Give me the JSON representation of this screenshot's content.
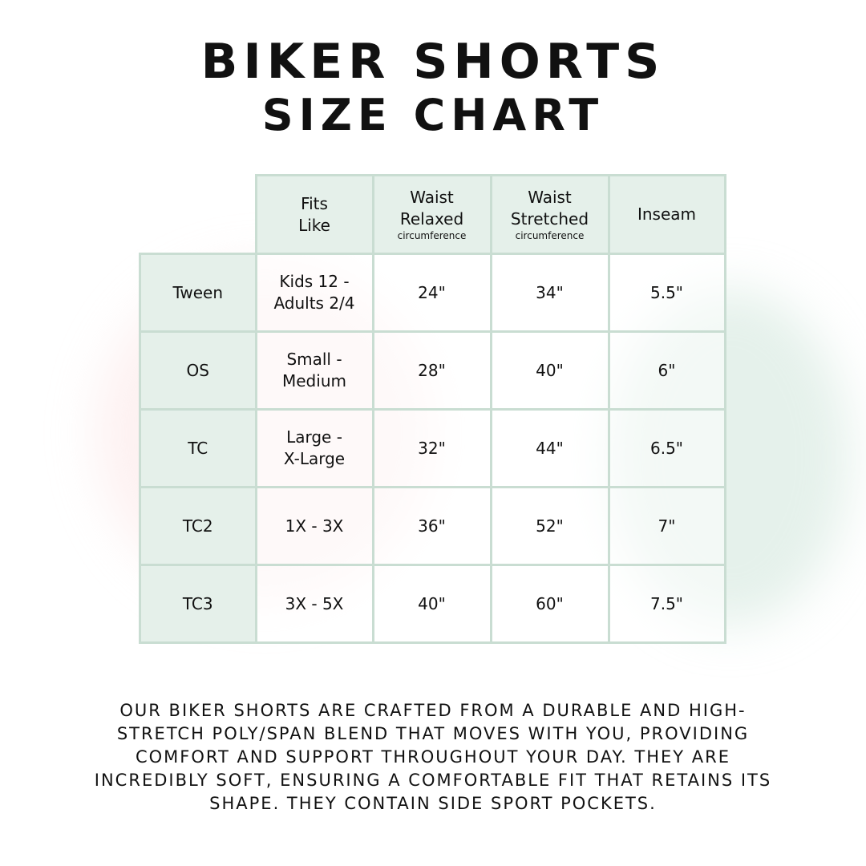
{
  "title": {
    "line1": "Biker Shorts",
    "line2": "Size Chart"
  },
  "table": {
    "headers": [
      {
        "label": "Fits",
        "label2": "Like",
        "sub": ""
      },
      {
        "label": "Waist",
        "label2": "Relaxed",
        "sub": "circumference"
      },
      {
        "label": "Waist",
        "label2": "Stretched",
        "sub": "circumference"
      },
      {
        "label": "Inseam",
        "label2": "",
        "sub": ""
      }
    ],
    "rows": [
      {
        "size": "Tween",
        "fits1": "Kids 12 -",
        "fits2": "Adults 2/4",
        "relaxed": "24\"",
        "stretched": "34\"",
        "inseam": "5.5\""
      },
      {
        "size": "OS",
        "fits1": "Small -",
        "fits2": "Medium",
        "relaxed": "28\"",
        "stretched": "40\"",
        "inseam": "6\""
      },
      {
        "size": "TC",
        "fits1": "Large -",
        "fits2": "X-Large",
        "relaxed": "32\"",
        "stretched": "44\"",
        "inseam": "6.5\""
      },
      {
        "size": "TC2",
        "fits1": "1X - 3X",
        "fits2": "",
        "relaxed": "36\"",
        "stretched": "52\"",
        "inseam": "7\""
      },
      {
        "size": "TC3",
        "fits1": "3X - 5X",
        "fits2": "",
        "relaxed": "40\"",
        "stretched": "60\"",
        "inseam": "7.5\""
      }
    ]
  },
  "description": [
    "Our biker shorts are crafted from a durable and high-",
    "stretch poly/span blend that moves with you, providing",
    "comfort and support throughout your day. They are",
    "incredibly soft, ensuring a comfortable fit that retains its",
    "shape. They contain side sport pockets."
  ],
  "colors": {
    "cell_header": "#e4efe9",
    "border": "#c9ddd2",
    "text": "#111111"
  }
}
